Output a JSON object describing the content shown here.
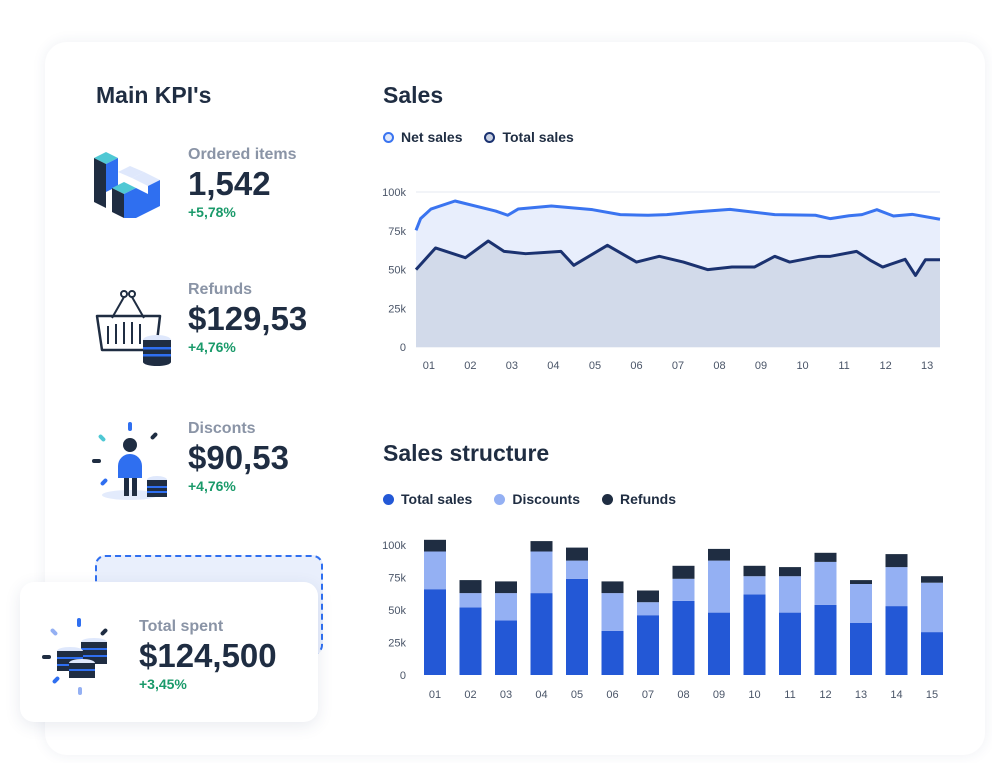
{
  "kpi_title": "Main KPI's",
  "kpis": [
    {
      "label": "Ordered items",
      "value": "1,542",
      "change": "+5,78%"
    },
    {
      "label": "Refunds",
      "value": "$129,53",
      "change": "+4,76%"
    },
    {
      "label": "Disconts",
      "value": "$90,53",
      "change": "+4,76%"
    },
    {
      "label": "Total spent",
      "value": "$124,500",
      "change": "+3,45%"
    }
  ],
  "icons": [
    "isometric-blocks-icon",
    "basket-coins-icon",
    "person-coins-icon",
    "coins-stack-icon"
  ],
  "colors": {
    "text": "#1f2d42",
    "muted": "#8a94a6",
    "positive": "#1a9a6a",
    "net_sales": "#3a74f0",
    "total_sales_line": "#1b3270",
    "bar_total": "#2358d6",
    "bar_discounts": "#94b0f3",
    "bar_refunds": "#1f2d42"
  },
  "chart_data": [
    {
      "type": "area",
      "title": "Sales",
      "legend": "top-left",
      "grid": true,
      "ylim": [
        0,
        100000
      ],
      "yticks": [
        "0",
        "25k",
        "50k",
        "75k",
        "100k"
      ],
      "xticks": [
        "01",
        "02",
        "03",
        "04",
        "05",
        "06",
        "07",
        "08",
        "09",
        "10",
        "11",
        "12",
        "13"
      ],
      "xlim": [
        0.69,
        13.31
      ],
      "series": [
        {
          "name": "Net sales",
          "points": [
            [
              0.69,
              75300
            ],
            [
              0.8,
              82800
            ],
            [
              1.05,
              89000
            ],
            [
              1.63,
              94200
            ],
            [
              2.61,
              87700
            ],
            [
              2.9,
              85000
            ],
            [
              3.15,
              89000
            ],
            [
              3.95,
              91000
            ],
            [
              4.94,
              88600
            ],
            [
              5.61,
              85400
            ],
            [
              6.28,
              85000
            ],
            [
              6.73,
              85400
            ],
            [
              7.36,
              87000
            ],
            [
              8.25,
              88800
            ],
            [
              9.33,
              85400
            ],
            [
              10.31,
              85000
            ],
            [
              10.67,
              82800
            ],
            [
              11.12,
              84700
            ],
            [
              11.43,
              85400
            ],
            [
              11.79,
              88600
            ],
            [
              12.19,
              84500
            ],
            [
              12.64,
              85600
            ],
            [
              13.31,
              82400
            ]
          ]
        },
        {
          "name": "Total sales",
          "points": [
            [
              0.69,
              49900
            ],
            [
              1.16,
              63900
            ],
            [
              1.88,
              57600
            ],
            [
              2.43,
              68400
            ],
            [
              2.81,
              61700
            ],
            [
              3.33,
              60200
            ],
            [
              4.18,
              61700
            ],
            [
              4.49,
              52700
            ],
            [
              5.3,
              65600
            ],
            [
              6.0,
              54800
            ],
            [
              6.55,
              58500
            ],
            [
              7.13,
              54800
            ],
            [
              7.72,
              49900
            ],
            [
              8.3,
              51600
            ],
            [
              8.84,
              51600
            ],
            [
              9.33,
              58500
            ],
            [
              9.69,
              54800
            ],
            [
              10.4,
              58500
            ],
            [
              10.67,
              58500
            ],
            [
              11.3,
              61700
            ],
            [
              11.66,
              55500
            ],
            [
              11.93,
              51600
            ],
            [
              12.47,
              56600
            ],
            [
              12.72,
              46200
            ],
            [
              12.96,
              56300
            ],
            [
              13.31,
              56300
            ]
          ]
        }
      ]
    },
    {
      "type": "bar",
      "stacked": true,
      "title": "Sales structure",
      "legend": "top-left",
      "ylim": [
        0,
        100000
      ],
      "yticks": [
        "0",
        "25k",
        "50k",
        "75k",
        "100k"
      ],
      "categories": [
        "01",
        "02",
        "03",
        "04",
        "05",
        "06",
        "07",
        "08",
        "09",
        "10",
        "11",
        "12",
        "13",
        "14",
        "15"
      ],
      "series": [
        {
          "name": "Total sales",
          "values": [
            66000,
            52000,
            42000,
            63000,
            74000,
            34000,
            46000,
            57000,
            48000,
            62000,
            48000,
            54000,
            40000,
            53000,
            33000
          ]
        },
        {
          "name": "Discounts",
          "values": [
            29000,
            11000,
            21000,
            32000,
            14000,
            29000,
            10000,
            17000,
            40000,
            14000,
            28000,
            33000,
            30000,
            30000,
            38000
          ]
        },
        {
          "name": "Refunds",
          "values": [
            9000,
            10000,
            9000,
            8000,
            10000,
            9000,
            9000,
            10000,
            9000,
            8000,
            7000,
            7000,
            3000,
            10000,
            5000
          ]
        }
      ]
    }
  ]
}
